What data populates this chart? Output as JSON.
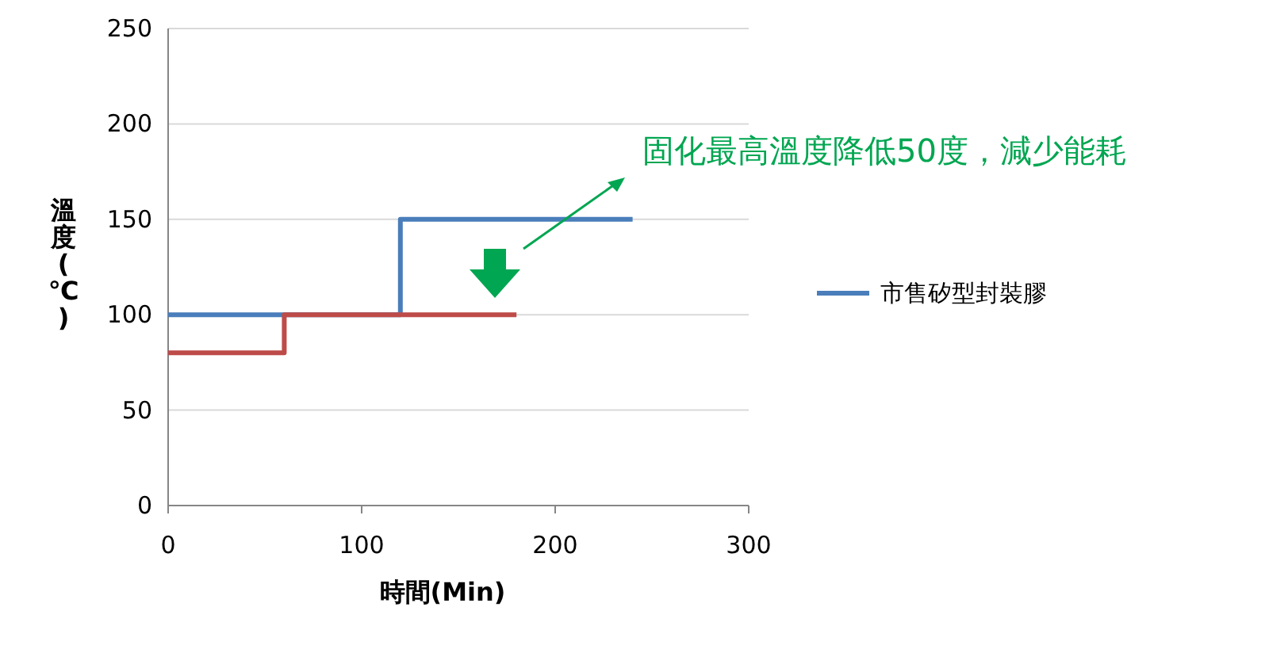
{
  "chart_data": {
    "type": "step",
    "xlabel": "時間(Min)",
    "ylabel": "溫度(℃)",
    "xlim": [
      0,
      300
    ],
    "ylim": [
      0,
      250
    ],
    "xticks": [
      0,
      100,
      200,
      300
    ],
    "yticks": [
      0,
      50,
      100,
      150,
      200,
      250
    ],
    "grid": "y",
    "legend": "right",
    "annotations": [
      "固化最高溫度降低50度，減少能耗"
    ],
    "series": [
      {
        "name": "市售矽型封裝膠",
        "color": "#4a7ebb",
        "x": [
          0,
          120,
          240
        ],
        "values": [
          100,
          150,
          150
        ]
      },
      {
        "color": "#be4b48",
        "x": [
          0,
          60,
          180
        ],
        "values": [
          80,
          100,
          100
        ]
      }
    ]
  }
}
